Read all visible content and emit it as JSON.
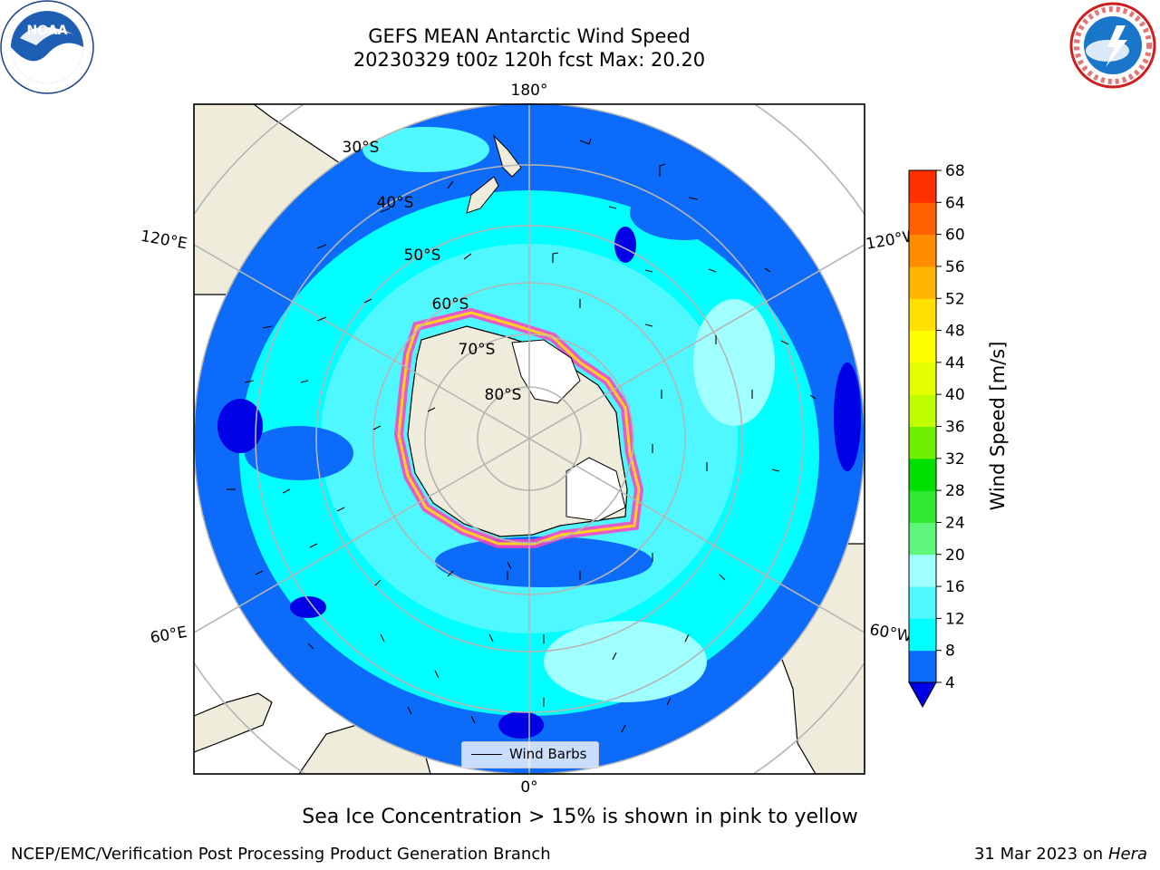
{
  "title_line1": "GEFS MEAN Antarctic Wind Speed",
  "title_line2": "20230329 t00z 120h fcst   Max: 20.20",
  "axis_labels": {
    "top": "180°",
    "bottom": "0°",
    "left_upper": "120°E",
    "left_lower": "60°E",
    "right_upper": "120°W",
    "right_lower": "60°W"
  },
  "lat_labels": [
    "30°S",
    "40°S",
    "50°S",
    "60°S",
    "70°S",
    "80°S"
  ],
  "legend_label": "Wind Barbs",
  "colorbar": {
    "label": "Wind Speed [m/s]",
    "ticks": [
      "4",
      "8",
      "12",
      "16",
      "20",
      "24",
      "28",
      "32",
      "36",
      "40",
      "44",
      "48",
      "52",
      "56",
      "60",
      "64",
      "68"
    ],
    "colors": [
      "#0d6bfa",
      "#00ffff",
      "#4ff8ff",
      "#a0ffff",
      "#5ef77c",
      "#2fe82f",
      "#00e000",
      "#6ef000",
      "#bfff00",
      "#e4ff00",
      "#ffff00",
      "#ffe000",
      "#ffb400",
      "#ff8c00",
      "#ff6000",
      "#ff3000",
      "#ff0000"
    ],
    "under_color": "#0000e6"
  },
  "note": "Sea Ice Concentration > 15% is shown in pink to yellow",
  "footer_left": "NCEP/EMC/Verification Post Processing Product Generation Branch",
  "footer_date": "31 Mar 2023 on",
  "footer_host": "Hera",
  "logos": {
    "left": "noaa-logo",
    "right": "nws-logo"
  }
}
